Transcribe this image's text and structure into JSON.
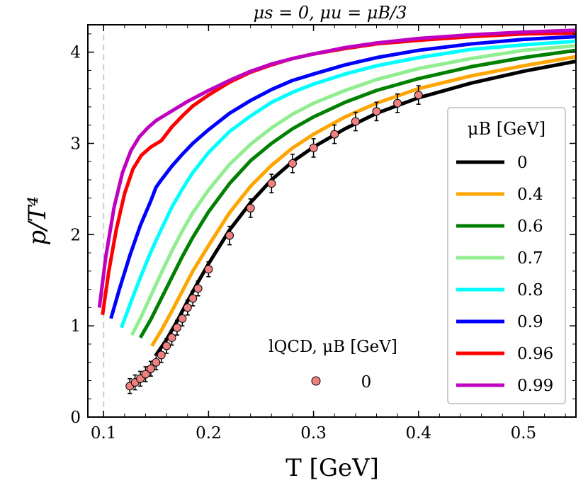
{
  "chart_data": {
    "type": "line",
    "title": "μs = 0, μu = μB/3",
    "xlabel": "T [GeV]",
    "ylabel": "p/T⁴",
    "xlim": [
      0.085,
      0.55
    ],
    "ylim": [
      0,
      4.3
    ],
    "xticks": [
      0.1,
      0.2,
      0.3,
      0.4,
      0.5
    ],
    "xtick_labels": [
      "0.1",
      "0.2",
      "0.3",
      "0.4",
      "0.5"
    ],
    "yticks": [
      0,
      1,
      2,
      3,
      4
    ],
    "ytick_labels": [
      "0",
      "1",
      "2",
      "3",
      "4"
    ],
    "vertical_reference_line": {
      "x": 0.1,
      "style": "dashed",
      "color": "#cccccc"
    },
    "grid": false,
    "legend": {
      "title": "μB [GeV]",
      "placement": "right"
    },
    "series": [
      {
        "name": "0",
        "color": "#000000",
        "x": [
          0.15,
          0.16,
          0.17,
          0.18,
          0.19,
          0.2,
          0.22,
          0.24,
          0.26,
          0.28,
          0.3,
          0.33,
          0.36,
          0.4,
          0.45,
          0.5,
          0.55
        ],
        "y": [
          0.68,
          0.85,
          1.05,
          1.27,
          1.48,
          1.68,
          2.05,
          2.35,
          2.6,
          2.8,
          2.96,
          3.16,
          3.33,
          3.5,
          3.66,
          3.79,
          3.9
        ]
      },
      {
        "name": "0.4",
        "color": "#FFA500",
        "x": [
          0.146,
          0.155,
          0.165,
          0.175,
          0.185,
          0.2,
          0.22,
          0.24,
          0.26,
          0.28,
          0.3,
          0.33,
          0.36,
          0.4,
          0.45,
          0.5,
          0.55
        ],
        "y": [
          0.78,
          0.95,
          1.16,
          1.38,
          1.6,
          1.88,
          2.24,
          2.53,
          2.76,
          2.95,
          3.1,
          3.29,
          3.44,
          3.6,
          3.74,
          3.85,
          3.95
        ]
      },
      {
        "name": "0.6",
        "color": "#008000",
        "x": [
          0.135,
          0.145,
          0.155,
          0.165,
          0.175,
          0.185,
          0.2,
          0.22,
          0.24,
          0.26,
          0.28,
          0.3,
          0.33,
          0.36,
          0.4,
          0.45,
          0.5,
          0.55
        ],
        "y": [
          0.87,
          1.07,
          1.3,
          1.53,
          1.76,
          1.97,
          2.25,
          2.56,
          2.81,
          3.0,
          3.16,
          3.29,
          3.45,
          3.58,
          3.71,
          3.84,
          3.94,
          4.02
        ]
      },
      {
        "name": "0.7",
        "color": "#90EE90",
        "x": [
          0.127,
          0.135,
          0.145,
          0.155,
          0.165,
          0.175,
          0.185,
          0.2,
          0.22,
          0.24,
          0.26,
          0.28,
          0.3,
          0.33,
          0.36,
          0.4,
          0.45,
          0.5,
          0.55
        ],
        "y": [
          0.9,
          1.08,
          1.33,
          1.58,
          1.82,
          2.04,
          2.24,
          2.49,
          2.77,
          2.99,
          3.17,
          3.32,
          3.44,
          3.58,
          3.7,
          3.82,
          3.93,
          4.02,
          4.07
        ]
      },
      {
        "name": "0.8",
        "color": "#00FFFF",
        "x": [
          0.117,
          0.125,
          0.135,
          0.145,
          0.155,
          0.165,
          0.175,
          0.185,
          0.2,
          0.22,
          0.24,
          0.26,
          0.28,
          0.3,
          0.33,
          0.36,
          0.4,
          0.45,
          0.5,
          0.55
        ],
        "y": [
          0.98,
          1.23,
          1.53,
          1.81,
          2.06,
          2.3,
          2.5,
          2.68,
          2.9,
          3.13,
          3.3,
          3.45,
          3.56,
          3.65,
          3.76,
          3.85,
          3.94,
          4.03,
          4.08,
          4.12
        ]
      },
      {
        "name": "0.9",
        "color": "#0000FF",
        "x": [
          0.107,
          0.115,
          0.125,
          0.135,
          0.145,
          0.15,
          0.155,
          0.165,
          0.175,
          0.185,
          0.2,
          0.22,
          0.24,
          0.26,
          0.28,
          0.3,
          0.33,
          0.36,
          0.4,
          0.45,
          0.5,
          0.55
        ],
        "y": [
          1.08,
          1.4,
          1.77,
          2.1,
          2.37,
          2.52,
          2.6,
          2.75,
          2.88,
          3.0,
          3.15,
          3.33,
          3.47,
          3.59,
          3.69,
          3.76,
          3.86,
          3.94,
          4.02,
          4.09,
          4.14,
          4.17
        ]
      },
      {
        "name": "0.96",
        "color": "#FF0000",
        "x": [
          0.099,
          0.105,
          0.112,
          0.12,
          0.128,
          0.136,
          0.145,
          0.155,
          0.165,
          0.175,
          0.185,
          0.2,
          0.22,
          0.24,
          0.26,
          0.28,
          0.3,
          0.33,
          0.36,
          0.4,
          0.45,
          0.5,
          0.55
        ],
        "y": [
          1.12,
          1.6,
          2.05,
          2.45,
          2.72,
          2.87,
          2.96,
          3.03,
          3.18,
          3.3,
          3.41,
          3.53,
          3.67,
          3.78,
          3.86,
          3.93,
          3.98,
          4.04,
          4.09,
          4.13,
          4.17,
          4.2,
          4.21
        ]
      },
      {
        "name": "0.99",
        "color": "#BF00BF",
        "x": [
          0.096,
          0.102,
          0.11,
          0.118,
          0.126,
          0.134,
          0.142,
          0.15,
          0.16,
          0.17,
          0.18,
          0.19,
          0.2,
          0.22,
          0.24,
          0.26,
          0.28,
          0.3,
          0.33,
          0.36,
          0.4,
          0.45,
          0.5,
          0.55
        ],
        "y": [
          1.2,
          1.75,
          2.3,
          2.68,
          2.92,
          3.07,
          3.17,
          3.25,
          3.32,
          3.39,
          3.46,
          3.52,
          3.58,
          3.69,
          3.79,
          3.87,
          3.93,
          3.98,
          4.05,
          4.1,
          4.15,
          4.19,
          4.22,
          4.24
        ]
      }
    ],
    "lqcd": {
      "label": "lQCD, μB [GeV]",
      "marker_label": "0",
      "marker_color": "#F08080",
      "points": [
        {
          "x": 0.125,
          "y": 0.34,
          "err": 0.05
        },
        {
          "x": 0.13,
          "y": 0.38,
          "err": 0.05
        },
        {
          "x": 0.135,
          "y": 0.42,
          "err": 0.05
        },
        {
          "x": 0.14,
          "y": 0.47,
          "err": 0.05
        },
        {
          "x": 0.145,
          "y": 0.53,
          "err": 0.05
        },
        {
          "x": 0.15,
          "y": 0.6,
          "err": 0.05
        },
        {
          "x": 0.155,
          "y": 0.68,
          "err": 0.05
        },
        {
          "x": 0.16,
          "y": 0.78,
          "err": 0.05
        },
        {
          "x": 0.165,
          "y": 0.87,
          "err": 0.05
        },
        {
          "x": 0.17,
          "y": 0.98,
          "err": 0.05
        },
        {
          "x": 0.175,
          "y": 1.08,
          "err": 0.05
        },
        {
          "x": 0.18,
          "y": 1.2,
          "err": 0.05
        },
        {
          "x": 0.185,
          "y": 1.3,
          "err": 0.05
        },
        {
          "x": 0.19,
          "y": 1.41,
          "err": 0.05
        },
        {
          "x": 0.2,
          "y": 1.62,
          "err": 0.05
        },
        {
          "x": 0.22,
          "y": 1.99,
          "err": 0.07
        },
        {
          "x": 0.24,
          "y": 2.29,
          "err": 0.07
        },
        {
          "x": 0.26,
          "y": 2.56,
          "err": 0.07
        },
        {
          "x": 0.28,
          "y": 2.78,
          "err": 0.07
        },
        {
          "x": 0.3,
          "y": 2.95,
          "err": 0.07
        },
        {
          "x": 0.32,
          "y": 3.1,
          "err": 0.07
        },
        {
          "x": 0.34,
          "y": 3.24,
          "err": 0.07
        },
        {
          "x": 0.36,
          "y": 3.35,
          "err": 0.07
        },
        {
          "x": 0.38,
          "y": 3.44,
          "err": 0.07
        },
        {
          "x": 0.4,
          "y": 3.53,
          "err": 0.07
        }
      ]
    }
  }
}
